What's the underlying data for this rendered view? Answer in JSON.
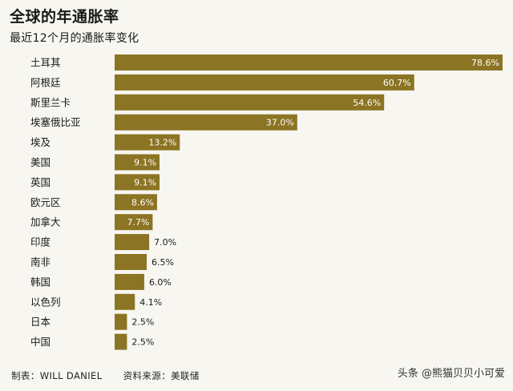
{
  "header": {
    "title": "全球的年通胀率",
    "subtitle": "最近12个月的通胀率变化"
  },
  "footer": {
    "credit": "制表：WILL DANIEL",
    "source": "资料来源：美联储"
  },
  "watermark": "头条 @熊猫贝贝小可爱",
  "colors": {
    "bar": "#8b7423",
    "background": "#f7f6f1"
  },
  "chart_data": {
    "type": "bar",
    "orientation": "horizontal",
    "title": "全球的年通胀率",
    "subtitle": "最近12个月的通胀率变化",
    "categories": [
      "土耳其",
      "阿根廷",
      "斯里兰卡",
      "埃塞俄比亚",
      "埃及",
      "美国",
      "英国",
      "欧元区",
      "加拿大",
      "印度",
      "南非",
      "韩国",
      "以色列",
      "日本",
      "中国"
    ],
    "values": [
      78.6,
      60.7,
      54.6,
      37.0,
      13.2,
      9.1,
      9.1,
      8.6,
      7.7,
      7.0,
      6.5,
      6.0,
      4.1,
      2.5,
      2.5
    ],
    "labels": [
      "78.6%",
      "60.7%",
      "54.6%",
      "37.0%",
      "13.2%",
      "9.1%",
      "9.1%",
      "8.6%",
      "7.7%",
      "7.0%",
      "6.5%",
      "6.0%",
      "4.1%",
      "2.5%",
      "2.5%"
    ],
    "xlim": [
      0,
      78.6
    ],
    "grid": false,
    "legend": "none"
  }
}
